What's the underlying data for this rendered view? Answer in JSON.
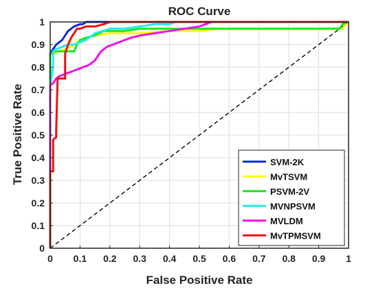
{
  "chart_data": {
    "type": "line",
    "title": "ROC Curve",
    "xlabel": "False Positive Rate",
    "ylabel": "True Positive Rate",
    "xlim": [
      0,
      1
    ],
    "ylim": [
      0,
      1
    ],
    "xticks": [
      "0",
      "0.1",
      "0.2",
      "0.3",
      "0.4",
      "0.5",
      "0.6",
      "0.7",
      "0.8",
      "0.9",
      "1"
    ],
    "yticks": [
      "0",
      "0.1",
      "0.2",
      "0.3",
      "0.4",
      "0.5",
      "0.6",
      "0.7",
      "0.8",
      "0.9",
      "1"
    ],
    "grid": true,
    "legend_position": "bottom-right",
    "reference_line": {
      "from": [
        0,
        0
      ],
      "to": [
        1,
        1
      ],
      "style": "dashed",
      "color": "#000000"
    },
    "series": [
      {
        "name": "SVM-2K",
        "color": "#0a2bd6",
        "points": [
          [
            0,
            0
          ],
          [
            0,
            0.86
          ],
          [
            0.01,
            0.88
          ],
          [
            0.02,
            0.9
          ],
          [
            0.04,
            0.92
          ],
          [
            0.05,
            0.94
          ],
          [
            0.06,
            0.96
          ],
          [
            0.07,
            0.97
          ],
          [
            0.08,
            0.98
          ],
          [
            0.1,
            0.99
          ],
          [
            0.11,
            0.99
          ],
          [
            0.12,
            1.0
          ],
          [
            0.2,
            1.0
          ],
          [
            0.22,
            1.0
          ],
          [
            1.0,
            1.0
          ]
        ]
      },
      {
        "name": "MvTSVM",
        "color": "#ffff00",
        "points": [
          [
            0,
            0
          ],
          [
            0,
            0.85
          ],
          [
            0.01,
            0.86
          ],
          [
            0.03,
            0.87
          ],
          [
            0.05,
            0.88
          ],
          [
            0.07,
            0.89
          ],
          [
            0.1,
            0.92
          ],
          [
            0.12,
            0.93
          ],
          [
            0.15,
            0.94
          ],
          [
            0.2,
            0.95
          ],
          [
            0.3,
            0.95
          ],
          [
            0.4,
            0.96
          ],
          [
            0.5,
            0.96
          ],
          [
            0.56,
            0.97
          ],
          [
            0.98,
            0.97
          ],
          [
            0.99,
            0.99
          ],
          [
            1.0,
            1.0
          ]
        ]
      },
      {
        "name": "PSVM-2V",
        "color": "#18e818",
        "points": [
          [
            0,
            0
          ],
          [
            0,
            0.86
          ],
          [
            0.01,
            0.86
          ],
          [
            0.01,
            0.87
          ],
          [
            0.08,
            0.87
          ],
          [
            0.09,
            0.9
          ],
          [
            0.1,
            0.92
          ],
          [
            0.12,
            0.93
          ],
          [
            0.15,
            0.94
          ],
          [
            0.18,
            0.96
          ],
          [
            0.25,
            0.96
          ],
          [
            0.3,
            0.97
          ],
          [
            0.97,
            0.97
          ],
          [
            0.98,
            0.99
          ],
          [
            1.0,
            1.0
          ]
        ]
      },
      {
        "name": "MVNPSVM",
        "color": "#22ecec",
        "points": [
          [
            0,
            0
          ],
          [
            0,
            0.72
          ],
          [
            0.01,
            0.8
          ],
          [
            0.01,
            0.87
          ],
          [
            0.02,
            0.88
          ],
          [
            0.04,
            0.89
          ],
          [
            0.06,
            0.9
          ],
          [
            0.08,
            0.9
          ],
          [
            0.1,
            0.91
          ],
          [
            0.12,
            0.92
          ],
          [
            0.15,
            0.95
          ],
          [
            0.2,
            0.97
          ],
          [
            0.25,
            0.97
          ],
          [
            0.3,
            0.98
          ],
          [
            0.35,
            0.99
          ],
          [
            0.38,
            0.99
          ],
          [
            0.4,
            0.99
          ],
          [
            0.42,
            1.0
          ],
          [
            1.0,
            1.0
          ]
        ]
      },
      {
        "name": "MVLDM",
        "color": "#ee11ee",
        "points": [
          [
            0,
            0
          ],
          [
            0,
            0.72
          ],
          [
            0.01,
            0.73
          ],
          [
            0.02,
            0.75
          ],
          [
            0.03,
            0.76
          ],
          [
            0.05,
            0.77
          ],
          [
            0.07,
            0.78
          ],
          [
            0.09,
            0.79
          ],
          [
            0.11,
            0.8
          ],
          [
            0.13,
            0.81
          ],
          [
            0.14,
            0.82
          ],
          [
            0.15,
            0.83
          ],
          [
            0.16,
            0.85
          ],
          [
            0.17,
            0.87
          ],
          [
            0.19,
            0.89
          ],
          [
            0.21,
            0.9
          ],
          [
            0.23,
            0.91
          ],
          [
            0.25,
            0.92
          ],
          [
            0.27,
            0.93
          ],
          [
            0.3,
            0.94
          ],
          [
            0.35,
            0.95
          ],
          [
            0.4,
            0.96
          ],
          [
            0.45,
            0.97
          ],
          [
            0.5,
            0.98
          ],
          [
            0.52,
            0.99
          ],
          [
            0.54,
            1.0
          ],
          [
            1.0,
            1.0
          ]
        ]
      },
      {
        "name": "MvTPMSVM",
        "color": "#ee1111",
        "points": [
          [
            0,
            0
          ],
          [
            0,
            0.34
          ],
          [
            0.01,
            0.34
          ],
          [
            0.01,
            0.48
          ],
          [
            0.02,
            0.49
          ],
          [
            0.02,
            0.52
          ],
          [
            0.025,
            0.75
          ],
          [
            0.04,
            0.75
          ],
          [
            0.05,
            0.75
          ],
          [
            0.05,
            0.86
          ],
          [
            0.06,
            0.9
          ],
          [
            0.07,
            0.93
          ],
          [
            0.08,
            0.95
          ],
          [
            0.09,
            0.97
          ],
          [
            0.1,
            0.97
          ],
          [
            0.12,
            0.98
          ],
          [
            0.15,
            0.98
          ],
          [
            0.18,
            0.99
          ],
          [
            0.2,
            1.0
          ],
          [
            1.0,
            1.0
          ]
        ]
      }
    ]
  }
}
